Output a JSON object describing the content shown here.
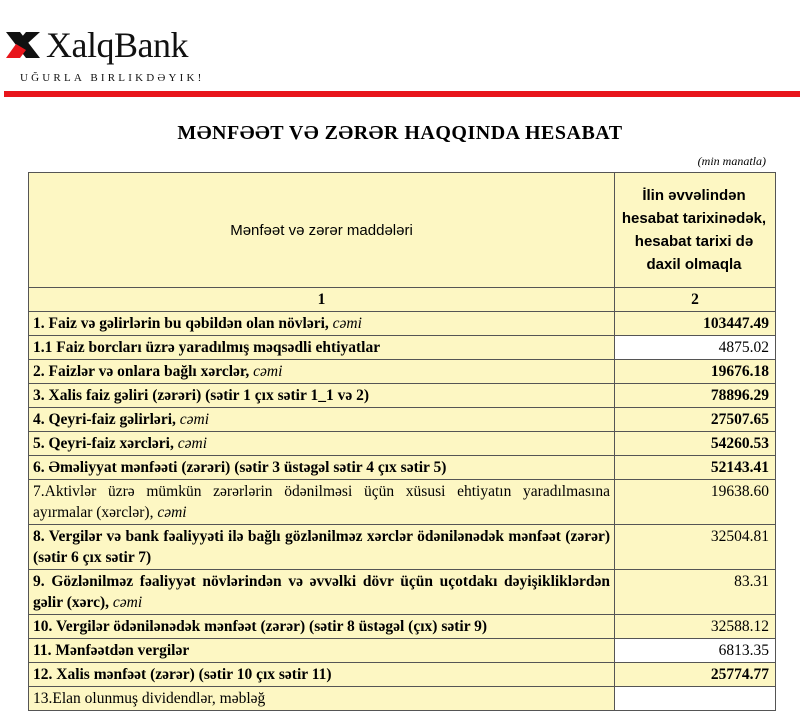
{
  "brand": {
    "name": "XalqBank",
    "slogan": "UĞURLA BIRLIKDƏYIK!",
    "accent": "#e8151b"
  },
  "title": "MƏNFƏƏT VƏ ZƏRƏR HAQQINDA HESABAT",
  "unit": "(min manatla)",
  "table": {
    "headers": [
      "Mənfəət və zərər maddələri",
      "İlin əvvəlindən hesabat tarixinədək, hesabat tarixi də daxil olmaqla"
    ],
    "column_numbers": [
      "1",
      "2"
    ],
    "rows": [
      {
        "label": "1. Faiz və gəlirlərin bu qəbildən olan növləri, ",
        "suffix": "cəmi",
        "value": "103447.49"
      },
      {
        "label": "1.1 Faiz borcları üzrə yaradılmış məqsədli ehtiyatlar",
        "suffix": "",
        "value": "4875.02"
      },
      {
        "label": "2. Faizlər və onlara bağlı xərclər, ",
        "suffix": "cəmi",
        "value": "19676.18"
      },
      {
        "label": "3. Xalis faiz gəliri (zərəri) (sətir 1 çıx sətir 1_1 və 2)",
        "suffix": "",
        "value": "78896.29"
      },
      {
        "label": "4. Qeyri-faiz gəlirləri, ",
        "suffix": "cəmi",
        "value": "27507.65"
      },
      {
        "label": "5. Qeyri-faiz xərcləri, ",
        "suffix": "cəmi",
        "value": "54260.53"
      },
      {
        "label": "6. Əməliyyat mənfəəti (zərəri) (sətir 3 üstəgəl sətir 4 çıx sətir 5)",
        "suffix": "",
        "value": "52143.41"
      },
      {
        "label": "7.Aktivlər üzrə mümkün zərərlərin ödənilməsi üçün xüsusi ehtiyatın yaradılmasına ayırmalar (xərclər), ",
        "suffix": "cəmi",
        "value": "19638.60"
      },
      {
        "label": "8. Vergilər və bank fəaliyyəti ilə bağlı gözlənilməz xərclər ödənilənədək mənfəət (zərər) (sətir 6 çıx sətir 7)",
        "suffix": "",
        "value": "32504.81"
      },
      {
        "label": "9. Gözlənilməz fəaliyyət növlərindən və əvvəlki dövr üçün uçotdakı dəyişikliklərdən gəlir (xərc), ",
        "suffix": "cəmi",
        "value": "83.31"
      },
      {
        "label": "10. Vergilər ödənilənədək mənfəət (zərər) (sətir 8 üstəgəl (çıx) sətir 9)",
        "suffix": "",
        "value": "32588.12"
      },
      {
        "label": "11. Mənfəətdən vergilər",
        "suffix": "",
        "value": "6813.35"
      },
      {
        "label": "12. Xalis mənfəət (zərər) (sətir 10 çıx sətir 11)",
        "suffix": "",
        "value": "25774.77"
      },
      {
        "label": "13.Elan olunmuş dividendlər, məbləğ",
        "suffix": "",
        "value": ""
      }
    ]
  }
}
